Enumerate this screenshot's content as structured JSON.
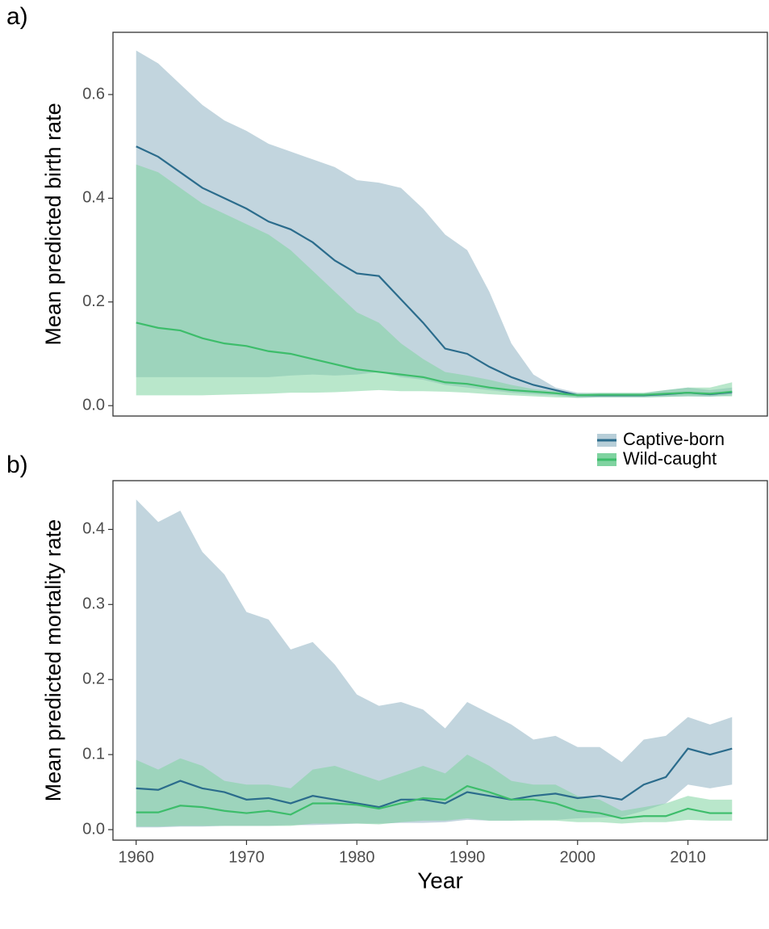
{
  "chart_data": [
    {
      "type": "line",
      "panel_label": "a)",
      "y_label": "Mean predicted birth rate",
      "x": [
        1960,
        1962,
        1964,
        1966,
        1968,
        1970,
        1972,
        1974,
        1976,
        1978,
        1980,
        1982,
        1984,
        1986,
        1988,
        1990,
        1992,
        1994,
        1996,
        1998,
        2000,
        2002,
        2004,
        2006,
        2008,
        2010,
        2012,
        2014
      ],
      "xlim": [
        1957.9,
        2017.2
      ],
      "ylim": [
        -0.02,
        0.72
      ],
      "yticks": [
        {
          "value": 0,
          "label": "0.0"
        },
        0.2,
        0.4,
        0.6
      ],
      "series": [
        {
          "name": "Captive-born",
          "color": "#2b6c8c",
          "band_color": "#b7ced8",
          "values": [
            0.5,
            0.48,
            0.45,
            0.42,
            0.4,
            0.38,
            0.355,
            0.34,
            0.315,
            0.28,
            0.255,
            0.25,
            0.205,
            0.16,
            0.11,
            0.1,
            0.075,
            0.055,
            0.04,
            0.03,
            0.02,
            0.02,
            0.02,
            0.02,
            0.022,
            0.025,
            0.022,
            0.026
          ],
          "lower": [
            0.055,
            0.055,
            0.055,
            0.055,
            0.055,
            0.055,
            0.055,
            0.058,
            0.06,
            0.058,
            0.06,
            0.065,
            0.055,
            0.05,
            0.04,
            0.035,
            0.03,
            0.025,
            0.022,
            0.02,
            0.015,
            0.016,
            0.016,
            0.016,
            0.017,
            0.018,
            0.017,
            0.02
          ],
          "upper": [
            0.685,
            0.66,
            0.62,
            0.58,
            0.55,
            0.53,
            0.505,
            0.49,
            0.475,
            0.46,
            0.435,
            0.43,
            0.42,
            0.38,
            0.33,
            0.3,
            0.22,
            0.12,
            0.06,
            0.035,
            0.025,
            0.024,
            0.024,
            0.024,
            0.03,
            0.035,
            0.03,
            0.035
          ]
        },
        {
          "name": "Wild-caught",
          "color": "#3dbd6b",
          "band_color": "#7fd3a0",
          "values": [
            0.16,
            0.15,
            0.145,
            0.13,
            0.12,
            0.115,
            0.105,
            0.1,
            0.09,
            0.08,
            0.07,
            0.065,
            0.06,
            0.055,
            0.045,
            0.042,
            0.035,
            0.03,
            0.027,
            0.024,
            0.02,
            0.021,
            0.021,
            0.021,
            0.023,
            0.025,
            0.023,
            0.027
          ],
          "lower": [
            0.02,
            0.02,
            0.02,
            0.02,
            0.021,
            0.022,
            0.023,
            0.025,
            0.025,
            0.026,
            0.028,
            0.03,
            0.028,
            0.028,
            0.027,
            0.025,
            0.022,
            0.02,
            0.018,
            0.016,
            0.015,
            0.016,
            0.016,
            0.016,
            0.017,
            0.018,
            0.018,
            0.018
          ],
          "upper": [
            0.465,
            0.45,
            0.42,
            0.39,
            0.37,
            0.35,
            0.33,
            0.3,
            0.26,
            0.22,
            0.18,
            0.16,
            0.12,
            0.09,
            0.065,
            0.058,
            0.05,
            0.04,
            0.032,
            0.028,
            0.024,
            0.025,
            0.025,
            0.025,
            0.03,
            0.035,
            0.035,
            0.045
          ]
        }
      ]
    },
    {
      "type": "line",
      "panel_label": "b)",
      "y_label": "Mean predicted mortality rate",
      "x_label": "Year",
      "x": [
        1960,
        1962,
        1964,
        1966,
        1968,
        1970,
        1972,
        1974,
        1976,
        1978,
        1980,
        1982,
        1984,
        1986,
        1988,
        1990,
        1992,
        1994,
        1996,
        1998,
        2000,
        2002,
        2004,
        2006,
        2008,
        2010,
        2012,
        2014
      ],
      "xlim": [
        1957.9,
        2017.2
      ],
      "ylim": [
        -0.014,
        0.465
      ],
      "xticks": [
        1960,
        1970,
        1980,
        1990,
        2000,
        2010
      ],
      "yticks": [
        {
          "value": 0,
          "label": "0.0"
        },
        0.1,
        0.2,
        0.3,
        0.4
      ],
      "series": [
        {
          "name": "Captive-born",
          "color": "#2b6c8c",
          "band_color": "#b7ced8",
          "values": [
            0.055,
            0.053,
            0.065,
            0.055,
            0.05,
            0.04,
            0.042,
            0.035,
            0.045,
            0.04,
            0.035,
            0.03,
            0.04,
            0.04,
            0.035,
            0.05,
            0.045,
            0.04,
            0.045,
            0.048,
            0.042,
            0.045,
            0.04,
            0.06,
            0.07,
            0.108,
            0.1,
            0.108
          ],
          "lower": [
            0.003,
            0.003,
            0.004,
            0.004,
            0.005,
            0.005,
            0.005,
            0.006,
            0.006,
            0.007,
            0.008,
            0.008,
            0.009,
            0.009,
            0.01,
            0.013,
            0.012,
            0.012,
            0.013,
            0.013,
            0.015,
            0.016,
            0.017,
            0.025,
            0.035,
            0.06,
            0.055,
            0.06
          ],
          "upper": [
            0.44,
            0.41,
            0.425,
            0.37,
            0.34,
            0.29,
            0.28,
            0.24,
            0.25,
            0.22,
            0.18,
            0.165,
            0.17,
            0.16,
            0.135,
            0.17,
            0.155,
            0.14,
            0.12,
            0.125,
            0.11,
            0.11,
            0.09,
            0.12,
            0.125,
            0.15,
            0.14,
            0.15
          ]
        },
        {
          "name": "Wild-caught",
          "color": "#3dbd6b",
          "band_color": "#7fd3a0",
          "values": [
            0.023,
            0.023,
            0.032,
            0.03,
            0.025,
            0.022,
            0.025,
            0.02,
            0.035,
            0.035,
            0.033,
            0.028,
            0.035,
            0.042,
            0.04,
            0.058,
            0.05,
            0.04,
            0.04,
            0.035,
            0.025,
            0.022,
            0.015,
            0.018,
            0.018,
            0.028,
            0.022,
            0.022
          ],
          "lower": [
            0.004,
            0.004,
            0.005,
            0.005,
            0.005,
            0.005,
            0.005,
            0.005,
            0.008,
            0.008,
            0.008,
            0.007,
            0.01,
            0.012,
            0.012,
            0.015,
            0.012,
            0.012,
            0.012,
            0.012,
            0.01,
            0.01,
            0.008,
            0.01,
            0.01,
            0.013,
            0.012,
            0.012
          ],
          "upper": [
            0.093,
            0.08,
            0.095,
            0.085,
            0.065,
            0.06,
            0.06,
            0.055,
            0.08,
            0.085,
            0.075,
            0.065,
            0.075,
            0.085,
            0.075,
            0.1,
            0.085,
            0.065,
            0.06,
            0.06,
            0.045,
            0.04,
            0.025,
            0.03,
            0.035,
            0.045,
            0.04,
            0.04
          ]
        }
      ]
    }
  ]
}
